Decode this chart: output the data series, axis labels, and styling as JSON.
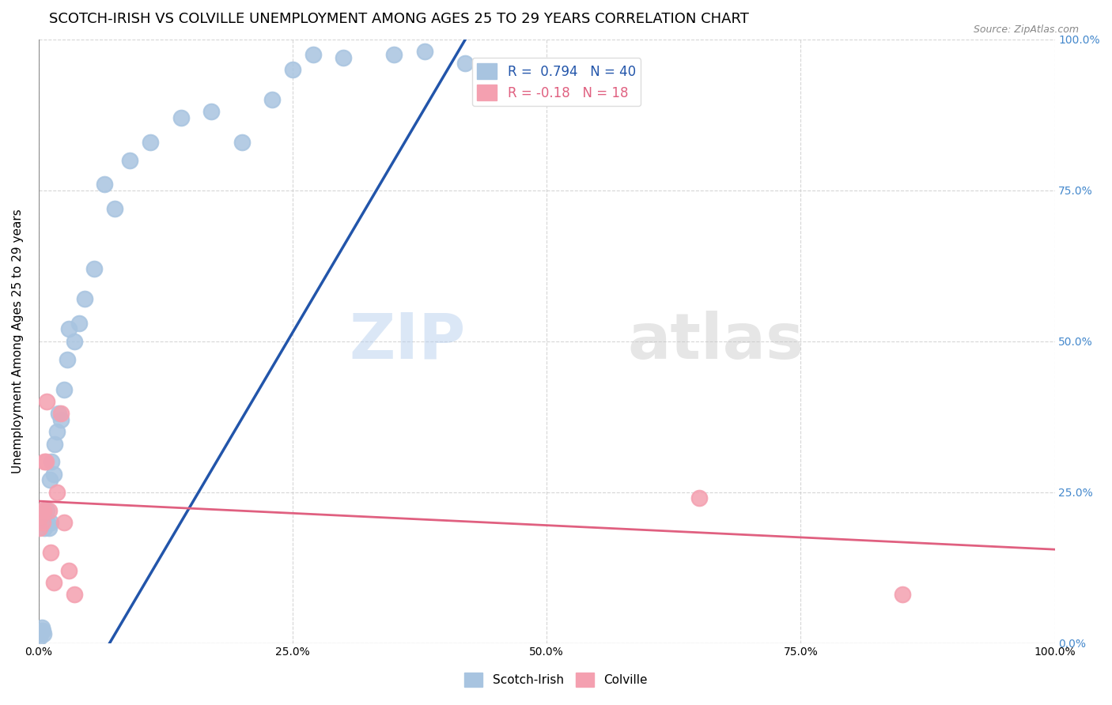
{
  "title": "SCOTCH-IRISH VS COLVILLE UNEMPLOYMENT AMONG AGES 25 TO 29 YEARS CORRELATION CHART",
  "source": "Source: ZipAtlas.com",
  "ylabel": "Unemployment Among Ages 25 to 29 years",
  "scotch_irish_R": 0.794,
  "scotch_irish_N": 40,
  "colville_R": -0.18,
  "colville_N": 18,
  "scotch_irish_color": "#a8c4e0",
  "scotch_irish_line_color": "#2255aa",
  "colville_color": "#f4a0b0",
  "colville_line_color": "#e06080",
  "si_x": [
    0.001,
    0.002,
    0.003,
    0.003,
    0.004,
    0.005,
    0.006,
    0.007,
    0.008,
    0.009,
    0.01,
    0.011,
    0.012,
    0.013,
    0.015,
    0.016,
    0.018,
    0.02,
    0.022,
    0.025,
    0.028,
    0.03,
    0.035,
    0.04,
    0.045,
    0.055,
    0.065,
    0.075,
    0.09,
    0.11,
    0.14,
    0.17,
    0.2,
    0.23,
    0.25,
    0.27,
    0.3,
    0.35,
    0.38,
    0.42
  ],
  "si_y": [
    0.01,
    0.015,
    0.02,
    0.025,
    0.02,
    0.015,
    0.19,
    0.2,
    0.22,
    0.2,
    0.19,
    0.27,
    0.2,
    0.3,
    0.28,
    0.33,
    0.35,
    0.38,
    0.37,
    0.42,
    0.47,
    0.52,
    0.5,
    0.53,
    0.57,
    0.62,
    0.76,
    0.72,
    0.8,
    0.83,
    0.87,
    0.88,
    0.83,
    0.9,
    0.95,
    0.975,
    0.97,
    0.975,
    0.98,
    0.96
  ],
  "cv_x": [
    0.001,
    0.002,
    0.003,
    0.004,
    0.005,
    0.006,
    0.007,
    0.008,
    0.01,
    0.012,
    0.015,
    0.018,
    0.022,
    0.025,
    0.03,
    0.035,
    0.65,
    0.85
  ],
  "cv_y": [
    0.19,
    0.21,
    0.22,
    0.2,
    0.22,
    0.3,
    0.3,
    0.4,
    0.22,
    0.15,
    0.1,
    0.25,
    0.38,
    0.2,
    0.12,
    0.08,
    0.24,
    0.08
  ],
  "si_line_x": [
    0.07,
    0.42
  ],
  "si_line_y": [
    0.0,
    1.0
  ],
  "cv_line_x": [
    0.0,
    1.0
  ],
  "cv_line_y": [
    0.235,
    0.155
  ],
  "watermark_zip": "ZIP",
  "watermark_atlas": "atlas",
  "background_color": "#ffffff",
  "grid_color": "#cccccc",
  "xlim": [
    0.0,
    1.0
  ],
  "ylim": [
    0.0,
    1.0
  ],
  "x_ticks": [
    0.0,
    0.25,
    0.5,
    0.75,
    1.0
  ],
  "y_ticks": [
    0.0,
    0.25,
    0.5,
    0.75,
    1.0
  ],
  "title_fontsize": 13,
  "axis_label_fontsize": 11,
  "tick_label_fontsize": 10,
  "legend_fontsize": 11,
  "right_tick_color": "#4488cc"
}
